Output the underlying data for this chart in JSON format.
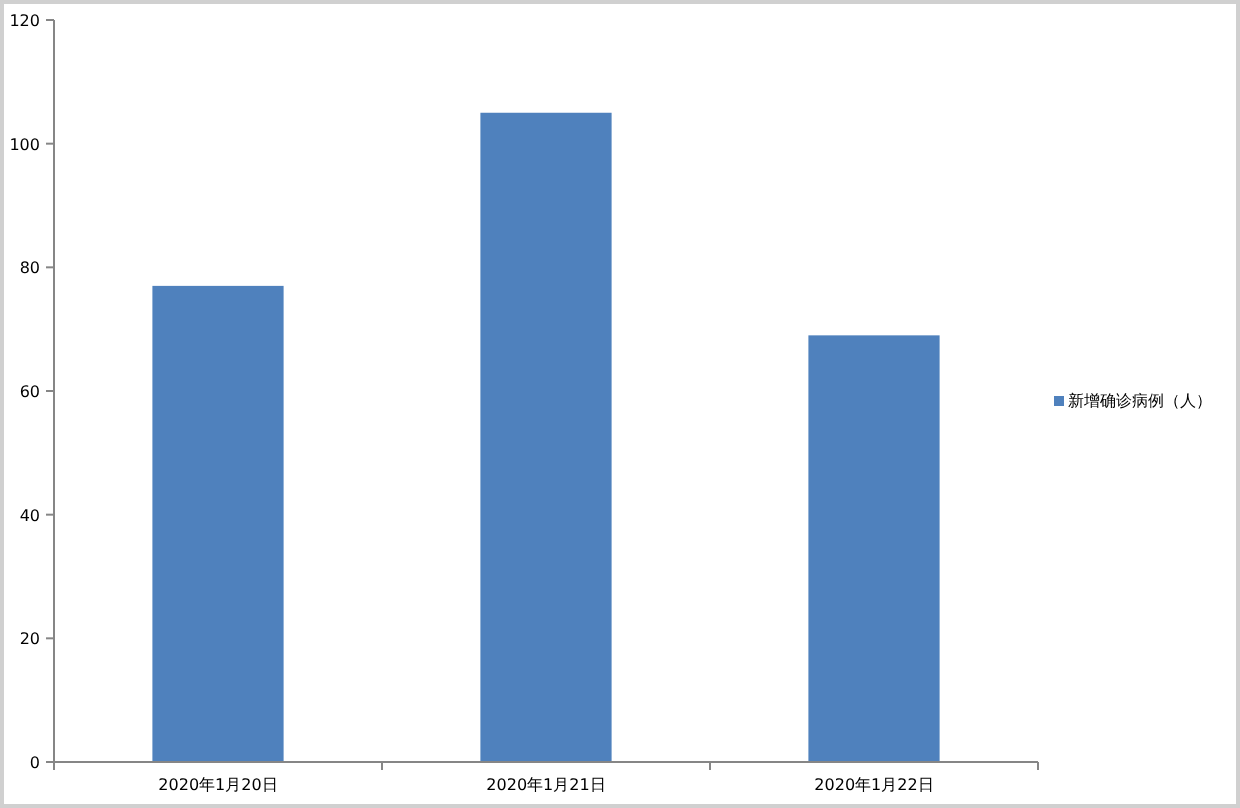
{
  "chart_data": {
    "type": "bar",
    "categories": [
      "2020年1月20日",
      "2020年1月21日",
      "2020年1月22日"
    ],
    "series": [
      {
        "name": "新增确诊病例（人）",
        "color": "#4f81bd",
        "values": [
          77,
          105,
          69
        ]
      }
    ],
    "ylim": [
      0,
      120
    ],
    "yticks": [
      0,
      20,
      40,
      60,
      80,
      100,
      120
    ],
    "grid": false,
    "legend": "right"
  }
}
